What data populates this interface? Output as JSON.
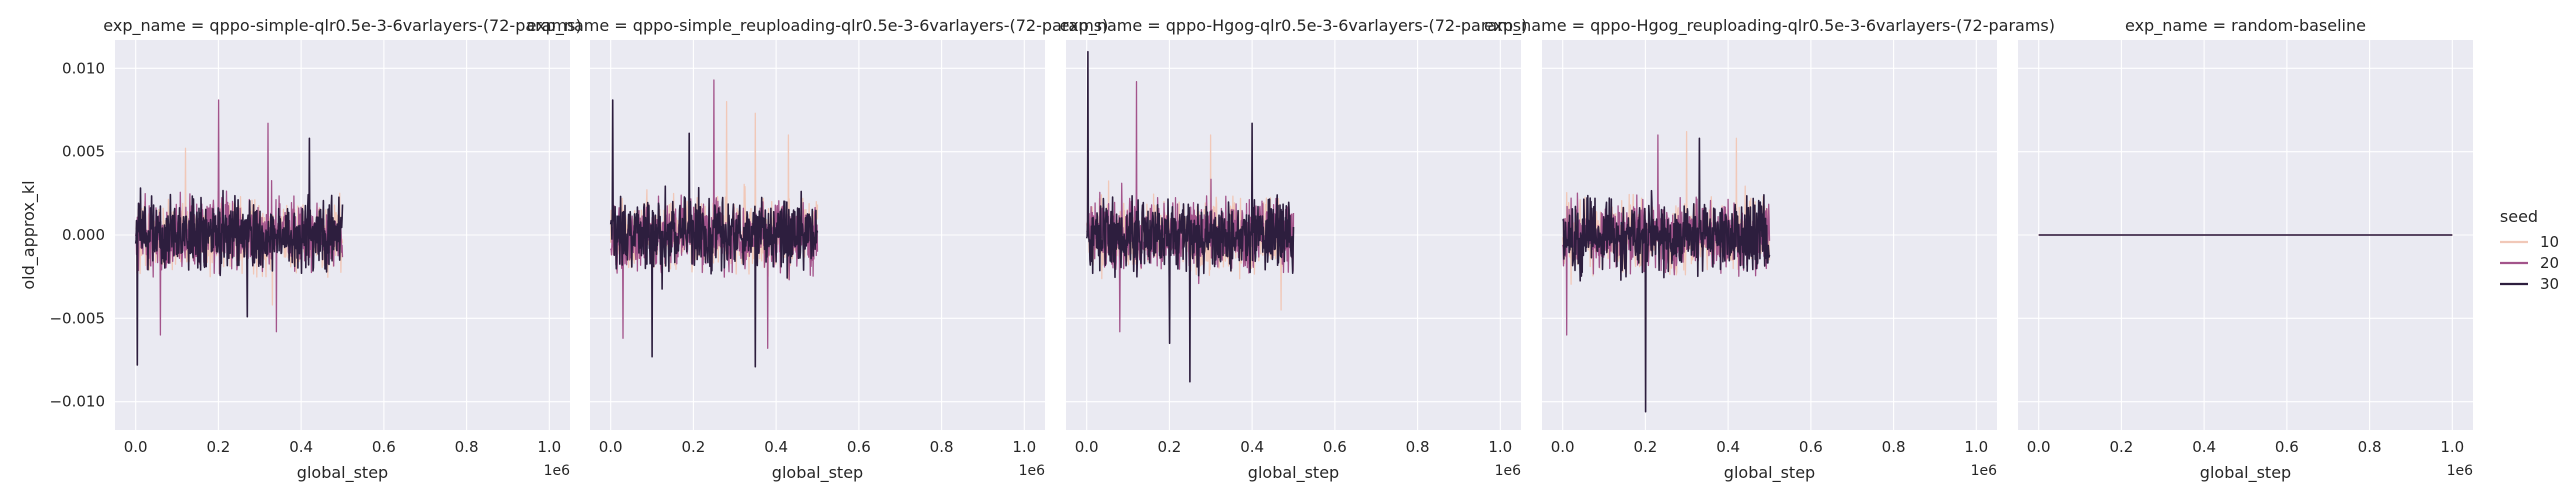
{
  "chart_data": [
    {
      "type": "line",
      "title": "exp_name = qppo-simple-qlr0.5e-3-6varlayers-(72-params)",
      "xlabel": "global_step",
      "ylabel": "old_approx_kl",
      "x_offset_label": "1e6",
      "xlim": [
        -0.05,
        1.05
      ],
      "ylim": [
        -0.0117,
        0.0117
      ],
      "xticks": [
        "0.0",
        "0.2",
        "0.4",
        "0.6",
        "0.8",
        "1.0"
      ],
      "yticks": [
        "−0.010",
        "−0.005",
        "0.000",
        "0.005",
        "0.010"
      ],
      "grid": true,
      "series": [
        {
          "name": "10",
          "color": "#f1c8b8",
          "x_range": [
            0,
            0.5
          ],
          "band": [
            -0.003,
            0.003
          ],
          "spikes": [
            [
              0.12,
              0.0052
            ],
            [
              0.33,
              -0.0042
            ]
          ],
          "seed": 101
        },
        {
          "name": "20",
          "color": "#a3548b",
          "x_range": [
            0,
            0.5
          ],
          "band": [
            -0.003,
            0.003
          ],
          "spikes": [
            [
              0.2,
              0.0081
            ],
            [
              0.32,
              0.0067
            ],
            [
              0.34,
              -0.0058
            ],
            [
              0.06,
              -0.006
            ]
          ],
          "seed": 102
        },
        {
          "name": "30",
          "color": "#2d1e3e",
          "x_range": [
            0,
            0.5
          ],
          "band": [
            -0.003,
            0.003
          ],
          "spikes": [
            [
              0.004,
              0.0085
            ],
            [
              0.004,
              -0.0078
            ],
            [
              0.42,
              0.0058
            ],
            [
              0.27,
              -0.0049
            ]
          ],
          "seed": 103
        }
      ]
    },
    {
      "type": "line",
      "title": "exp_name = qppo-simple_reuploading-qlr0.5e-3-6varlayers-(72-params)",
      "xlabel": "global_step",
      "x_offset_label": "1e6",
      "xlim": [
        -0.05,
        1.05
      ],
      "ylim": [
        -0.0117,
        0.0117
      ],
      "xticks": [
        "0.0",
        "0.2",
        "0.4",
        "0.6",
        "0.8",
        "1.0"
      ],
      "grid": true,
      "series": [
        {
          "name": "10",
          "color": "#f1c8b8",
          "x_range": [
            0,
            0.5
          ],
          "band": [
            -0.003,
            0.003
          ],
          "spikes": [
            [
              0.28,
              0.008
            ],
            [
              0.35,
              0.0073
            ],
            [
              0.43,
              0.006
            ]
          ],
          "seed": 201
        },
        {
          "name": "20",
          "color": "#a3548b",
          "x_range": [
            0,
            0.5
          ],
          "band": [
            -0.003,
            0.003
          ],
          "spikes": [
            [
              0.25,
              0.0093
            ],
            [
              0.03,
              -0.0062
            ],
            [
              0.38,
              -0.0068
            ]
          ],
          "seed": 202
        },
        {
          "name": "30",
          "color": "#2d1e3e",
          "x_range": [
            0,
            0.5
          ],
          "band": [
            -0.003,
            0.003
          ],
          "spikes": [
            [
              0.005,
              0.0081
            ],
            [
              0.35,
              -0.0079
            ],
            [
              0.1,
              -0.0073
            ],
            [
              0.19,
              0.0061
            ]
          ],
          "seed": 203
        }
      ]
    },
    {
      "type": "line",
      "title": "exp_name = qppo-Hgog-qlr0.5e-3-6varlayers-(72-params)",
      "xlabel": "global_step",
      "x_offset_label": "1e6",
      "xlim": [
        -0.05,
        1.05
      ],
      "ylim": [
        -0.0117,
        0.0117
      ],
      "xticks": [
        "0.0",
        "0.2",
        "0.4",
        "0.6",
        "0.8",
        "1.0"
      ],
      "grid": true,
      "series": [
        {
          "name": "10",
          "color": "#f1c8b8",
          "x_range": [
            0,
            0.5
          ],
          "band": [
            -0.003,
            0.003
          ],
          "spikes": [
            [
              0.3,
              0.006
            ],
            [
              0.47,
              -0.0045
            ]
          ],
          "seed": 301
        },
        {
          "name": "20",
          "color": "#a3548b",
          "x_range": [
            0,
            0.5
          ],
          "band": [
            -0.003,
            0.003
          ],
          "spikes": [
            [
              0.12,
              0.0092
            ],
            [
              0.08,
              -0.0058
            ]
          ],
          "seed": 302
        },
        {
          "name": "30",
          "color": "#2d1e3e",
          "x_range": [
            0,
            0.5
          ],
          "band": [
            -0.003,
            0.003
          ],
          "spikes": [
            [
              0.003,
              0.011
            ],
            [
              0.25,
              -0.0088
            ],
            [
              0.2,
              -0.0065
            ],
            [
              0.4,
              0.0067
            ]
          ],
          "seed": 303
        }
      ]
    },
    {
      "type": "line",
      "title": "exp_name = qppo-Hgog_reuploading-qlr0.5e-3-6varlayers-(72-params)",
      "xlabel": "global_step",
      "x_offset_label": "1e6",
      "xlim": [
        -0.05,
        1.05
      ],
      "ylim": [
        -0.0117,
        0.0117
      ],
      "xticks": [
        "0.0",
        "0.2",
        "0.4",
        "0.6",
        "0.8",
        "1.0"
      ],
      "grid": true,
      "series": [
        {
          "name": "10",
          "color": "#f1c8b8",
          "x_range": [
            0,
            0.5
          ],
          "band": [
            -0.003,
            0.003
          ],
          "spikes": [
            [
              0.3,
              0.0062
            ],
            [
              0.42,
              0.0058
            ]
          ],
          "seed": 401
        },
        {
          "name": "20",
          "color": "#a3548b",
          "x_range": [
            0,
            0.5
          ],
          "band": [
            -0.003,
            0.003
          ],
          "spikes": [
            [
              0.01,
              -0.006
            ],
            [
              0.23,
              0.006
            ]
          ],
          "seed": 402
        },
        {
          "name": "30",
          "color": "#2d1e3e",
          "x_range": [
            0,
            0.5
          ],
          "band": [
            -0.003,
            0.003
          ],
          "spikes": [
            [
              0.2,
              0.0087
            ],
            [
              0.2,
              -0.0106
            ],
            [
              0.33,
              0.0058
            ]
          ],
          "seed": 403
        }
      ]
    },
    {
      "type": "line",
      "title": "exp_name = random-baseline",
      "xlabel": "global_step",
      "x_offset_label": "1e6",
      "xlim": [
        -0.05,
        1.05
      ],
      "ylim": [
        -0.0117,
        0.0117
      ],
      "xticks": [
        "0.0",
        "0.2",
        "0.4",
        "0.6",
        "0.8",
        "1.0"
      ],
      "grid": true,
      "series": [
        {
          "name": "10",
          "color": "#f1c8b8",
          "points": [
            [
              0,
              0
            ],
            [
              1.0,
              0
            ]
          ]
        },
        {
          "name": "20",
          "color": "#a3548b",
          "points": [
            [
              0,
              0
            ],
            [
              1.0,
              0
            ]
          ]
        },
        {
          "name": "30",
          "color": "#2d1e3e",
          "points": [
            [
              0,
              0
            ],
            [
              1.0,
              0
            ]
          ]
        }
      ]
    }
  ],
  "legend": {
    "title": "seed",
    "placement": "right",
    "entries": [
      {
        "label": "10",
        "color": "#f1c8b8"
      },
      {
        "label": "20",
        "color": "#a3548b"
      },
      {
        "label": "30",
        "color": "#2d1e3e"
      }
    ]
  }
}
